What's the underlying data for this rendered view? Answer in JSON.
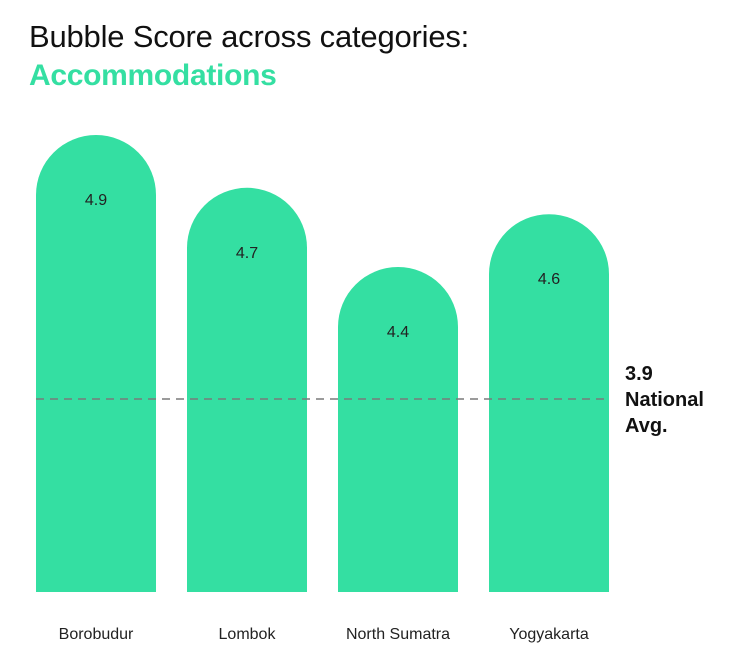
{
  "header": {
    "title": "Bubble Score across categories:",
    "subtitle": "Accommodations"
  },
  "colors": {
    "bar": "#34DFA2",
    "subtitle": "#34DFA2",
    "reference_line": "#7a7a7a"
  },
  "chart_data": {
    "type": "bar",
    "title": "Bubble Score across categories:",
    "subtitle": "Accommodations",
    "categories": [
      "Borobudur",
      "Lombok",
      "North Sumatra",
      "Yogyakarta"
    ],
    "values": [
      4.9,
      4.7,
      4.4,
      4.6
    ],
    "data_labels": [
      "4.9",
      "4.7",
      "4.4",
      "4.6"
    ],
    "reference_line": {
      "value": 3.9,
      "value_label": "3.9",
      "label_lines": [
        "National",
        "Avg."
      ],
      "style": "dashed"
    },
    "xlabel": "",
    "ylabel": "",
    "grid": false,
    "legend": "none",
    "bar_shape": "rounded-top"
  }
}
